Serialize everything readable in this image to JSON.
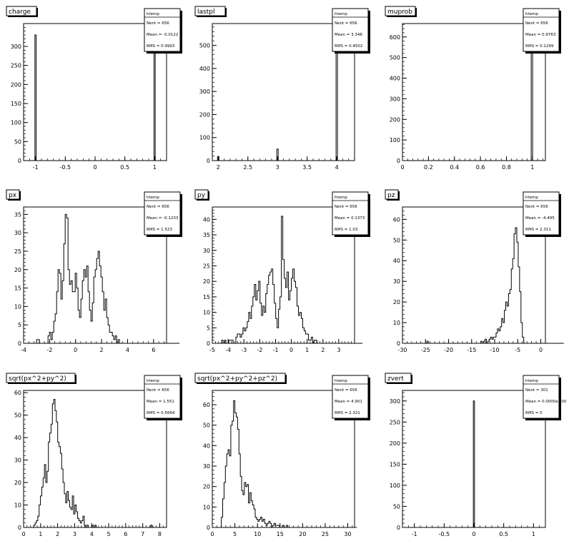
{
  "chart_data": [
    {
      "type": "bar",
      "title": "charge",
      "xticks": [
        "-1",
        "-0.5",
        "0",
        "0.5",
        "1"
      ],
      "xlim": [
        -1.2,
        1.2
      ],
      "yticks": [
        "0",
        "50",
        "100",
        "150",
        "200",
        "250",
        "300"
      ],
      "ylim": [
        0,
        360
      ],
      "bins": [
        {
          "x": -1,
          "y": 330
        },
        {
          "x": 1,
          "y": 330
        }
      ],
      "bin_width": 0.02,
      "stats": {
        "header": "htemp",
        "entries": "Nent = 656",
        "mean": "Mean = -0.0122",
        "rms": "RMS = 0.9993"
      }
    },
    {
      "type": "bar",
      "title": "lastpl",
      "xticks": [
        "2",
        "2.5",
        "3",
        "3.5",
        "4"
      ],
      "xlim": [
        1.9,
        4.3
      ],
      "yticks": [
        "0",
        "100",
        "200",
        "300",
        "400",
        "500"
      ],
      "ylim": [
        0,
        595
      ],
      "bins": [
        {
          "x": 2,
          "y": 18
        },
        {
          "x": 3,
          "y": 50
        },
        {
          "x": 4,
          "y": 588
        }
      ],
      "bin_width": 0.024,
      "stats": {
        "header": "htemp",
        "entries": "Nent = 656",
        "mean": "Mean = 3.348",
        "rms": "RMS = 0.4502"
      }
    },
    {
      "type": "bar",
      "title": "muprob",
      "xticks": [
        "0",
        "0.2",
        "0.4",
        "0.6",
        "0.8",
        "1"
      ],
      "xlim": [
        0,
        1.1
      ],
      "yticks": [
        "0",
        "100",
        "200",
        "300",
        "400",
        "500",
        "600"
      ],
      "ylim": [
        0,
        665
      ],
      "bins": [
        {
          "x": 0.996,
          "y": 656
        }
      ],
      "bin_width": 0.011,
      "stats": {
        "header": "htemp",
        "entries": "Nent = 656",
        "mean": "Mean = 0.9763",
        "rms": "RMS = 0.1299"
      }
    },
    {
      "type": "bar",
      "title": "px",
      "xticks": [
        "-4",
        "-2",
        "0",
        "2",
        "4",
        "6"
      ],
      "xlim": [
        -4,
        7
      ],
      "yticks": [
        "0",
        "5",
        "10",
        "15",
        "20",
        "25",
        "30",
        "35"
      ],
      "ylim": [
        0,
        37
      ],
      "x0": -3.0,
      "dx": 0.11,
      "counts": [
        1,
        1,
        0,
        0,
        0,
        0,
        0,
        0,
        2,
        3,
        1,
        3,
        6,
        8,
        14,
        20,
        19,
        12,
        17,
        27,
        35,
        34,
        20,
        16,
        17,
        14,
        14,
        19,
        15,
        9,
        7,
        12,
        17,
        20,
        18,
        21,
        14,
        9,
        6,
        11,
        18,
        20,
        23,
        25,
        21,
        18,
        14,
        9,
        12,
        7,
        5,
        3,
        3,
        2,
        1,
        2,
        0,
        1,
        0,
        0,
        0,
        0,
        0,
        0,
        0,
        0,
        0,
        0,
        0,
        0,
        0,
        0,
        0,
        0,
        0,
        0,
        0,
        0,
        0,
        0,
        0,
        0,
        0,
        0,
        0,
        0,
        0,
        0,
        0,
        0,
        0,
        0,
        0,
        0,
        0,
        0,
        0,
        0,
        0,
        0
      ],
      "stats": {
        "header": "htemp",
        "entries": "Nent = 656",
        "mean": "Mean = -0.1233",
        "rms": "RMS = 1.523"
      }
    },
    {
      "type": "bar",
      "title": "py",
      "xticks": [
        "-5",
        "-4",
        "-3",
        "-2",
        "-1",
        "0",
        "1",
        "2",
        "3"
      ],
      "xlim": [
        -5,
        4
      ],
      "yticks": [
        "0",
        "5",
        "10",
        "15",
        "20",
        "25",
        "30",
        "35",
        "40"
      ],
      "ylim": [
        0,
        44
      ],
      "x0": -4.5,
      "dx": 0.09,
      "counts": [
        0,
        1,
        0,
        1,
        0,
        0,
        1,
        1,
        1,
        0,
        0,
        2,
        3,
        3,
        2,
        3,
        5,
        4,
        5,
        7,
        10,
        8,
        12,
        15,
        19,
        14,
        17,
        20,
        13,
        9,
        12,
        10,
        16,
        19,
        22,
        23,
        24,
        19,
        13,
        8,
        5,
        11,
        15,
        41,
        27,
        21,
        18,
        23,
        14,
        17,
        21,
        24,
        20,
        18,
        12,
        9,
        10,
        8,
        5,
        4,
        3,
        3,
        1,
        1,
        2,
        0,
        1,
        1,
        0,
        0,
        0,
        0,
        0,
        0,
        0,
        0,
        0,
        0,
        0,
        0,
        0,
        0,
        0,
        0,
        0,
        0,
        0,
        0,
        0,
        0,
        0,
        0,
        0,
        0,
        0,
        0,
        0,
        0,
        0,
        0
      ],
      "stats": {
        "header": "htemp",
        "entries": "Nent = 656",
        "mean": "Mean = 0.1373",
        "rms": "RMS = 1.03"
      }
    },
    {
      "type": "bar",
      "title": "pz",
      "xticks": [
        "-30",
        "-25",
        "-20",
        "-15",
        "-10",
        "-5",
        "0"
      ],
      "xlim": [
        -30,
        1
      ],
      "yticks": [
        "0",
        "10",
        "20",
        "30",
        "40",
        "50",
        "60"
      ],
      "ylim": [
        0,
        66
      ],
      "x0": -25,
      "dx": 0.3,
      "counts": [
        0,
        1,
        0,
        0,
        0,
        0,
        0,
        0,
        0,
        0,
        0,
        0,
        0,
        0,
        0,
        0,
        0,
        0,
        0,
        0,
        0,
        0,
        0,
        0,
        0,
        0,
        0,
        0,
        0,
        0,
        0,
        0,
        0,
        0,
        0,
        0,
        0,
        0,
        0,
        0,
        1,
        0,
        1,
        2,
        0,
        1,
        2,
        3,
        2,
        3,
        3,
        5,
        7,
        6,
        8,
        12,
        10,
        16,
        20,
        18,
        24,
        26,
        36,
        41,
        53,
        56,
        49,
        37,
        25,
        10,
        3,
        0,
        0,
        0,
        0,
        0,
        0,
        0,
        0,
        0,
        0,
        0,
        0,
        0,
        0,
        0,
        0,
        0,
        0,
        0,
        0,
        0,
        0,
        0,
        0,
        0,
        0,
        0,
        0,
        0
      ],
      "stats": {
        "header": "htemp",
        "entries": "Nent = 656",
        "mean": "Mean = -4.495",
        "rms": "RMS = 2.311"
      }
    },
    {
      "type": "bar",
      "title": "sqrt(px^2+py^2)",
      "xticks": [
        "0",
        "1",
        "2",
        "3",
        "4",
        "5",
        "6",
        "7",
        "8"
      ],
      "xlim": [
        0,
        8.4
      ],
      "yticks": [
        "0",
        "10",
        "20",
        "30",
        "40",
        "50",
        "60"
      ],
      "ylim": [
        0,
        61
      ],
      "x0": 0.6,
      "dx": 0.078,
      "counts": [
        1,
        2,
        3,
        5,
        10,
        14,
        18,
        22,
        28,
        20,
        25,
        38,
        42,
        46,
        55,
        57,
        52,
        47,
        38,
        36,
        33,
        26,
        20,
        15,
        11,
        16,
        12,
        9,
        8,
        14,
        6,
        10,
        7,
        4,
        3,
        2,
        3,
        5,
        1,
        0,
        1,
        0,
        0,
        0,
        1,
        0,
        1,
        0,
        0,
        0,
        0,
        0,
        0,
        0,
        0,
        0,
        0,
        0,
        0,
        0,
        0,
        0,
        0,
        0,
        0,
        0,
        0,
        0,
        0,
        0,
        0,
        0,
        0,
        0,
        0,
        0,
        0,
        0,
        0,
        0,
        0,
        0,
        0,
        0,
        0,
        0,
        0,
        0,
        1,
        0,
        0,
        0,
        0,
        0,
        0,
        0,
        0,
        0,
        0,
        0
      ],
      "stats": {
        "header": "htemp",
        "entries": "Nent = 656",
        "mean": "Mean = 1.551",
        "rms": "RMS = 0.5664"
      }
    },
    {
      "type": "bar",
      "title": "sqrt(px^2+py^2+pz^2)",
      "xticks": [
        "0",
        "5",
        "10",
        "15",
        "20",
        "25",
        "30"
      ],
      "xlim": [
        0,
        31.5
      ],
      "yticks": [
        "0",
        "10",
        "20",
        "30",
        "40",
        "50",
        "60"
      ],
      "ylim": [
        0,
        67
      ],
      "x0": 2.0,
      "dx": 0.3,
      "counts": [
        5,
        14,
        22,
        30,
        36,
        38,
        35,
        50,
        52,
        62,
        56,
        54,
        48,
        36,
        25,
        18,
        16,
        22,
        20,
        21,
        12,
        17,
        13,
        11,
        9,
        5,
        4,
        3,
        4,
        5,
        3,
        4,
        2,
        1,
        2,
        3,
        2,
        0,
        1,
        2,
        1,
        1,
        1,
        0,
        0,
        1,
        0,
        0,
        1,
        0,
        0,
        0,
        0,
        0,
        0,
        0,
        0,
        0,
        0,
        0,
        0,
        0,
        0,
        0,
        0,
        0,
        0,
        0,
        0,
        0,
        0,
        0,
        0,
        0,
        0,
        0,
        0,
        0,
        0,
        0,
        0,
        0,
        0,
        0,
        0,
        0,
        0,
        0,
        0,
        0,
        0,
        0,
        0,
        0,
        0,
        0,
        0,
        0,
        0,
        0
      ],
      "stats": {
        "header": "htemp",
        "entries": "Nent = 656",
        "mean": "Mean = 4.901",
        "rms": "RMS = 2.321"
      }
    },
    {
      "type": "bar",
      "title": "zvert",
      "xticks": [
        "-1",
        "-0.5",
        "0",
        "0.5",
        "1"
      ],
      "xlim": [
        -1.2,
        1.2
      ],
      "yticks": [
        "0",
        "50",
        "100",
        "150",
        "200",
        "250",
        "300"
      ],
      "ylim": [
        0,
        325
      ],
      "bins": [
        {
          "x": 0,
          "y": 300
        }
      ],
      "bin_width": 0.02,
      "stats": {
        "header": "htemp",
        "entries": "Nent = 301",
        "mean": "Mean = 0.0000e+00",
        "rms": "RMS = 0"
      }
    }
  ]
}
